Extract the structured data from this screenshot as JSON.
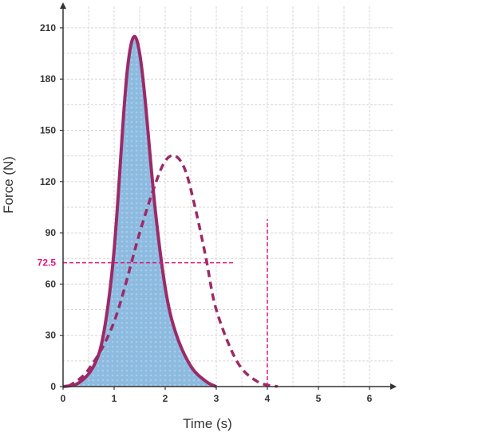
{
  "chart_data": {
    "type": "line",
    "xlabel": "Time (s)",
    "ylabel": "Force (N)",
    "xlim": [
      0,
      6.5
    ],
    "ylim": [
      0,
      215
    ],
    "x_ticks": [
      "0",
      "1",
      "2",
      "3",
      "4",
      "5",
      "6"
    ],
    "y_ticks": [
      "0",
      "30",
      "60",
      "90",
      "120",
      "150",
      "180",
      "210"
    ],
    "grid": true,
    "series": [
      {
        "style": "solid, shaded area under curve",
        "color": "#9c2a67",
        "fill_color": "#8dbbe0",
        "x": [
          0,
          0.3,
          0.6,
          0.8,
          1.0,
          1.2,
          1.3,
          1.4,
          1.5,
          1.6,
          1.8,
          2.0,
          2.2,
          2.5,
          2.8,
          3.0
        ],
        "y": [
          0,
          2,
          12,
          32,
          80,
          165,
          195,
          205,
          195,
          170,
          105,
          58,
          32,
          12,
          3,
          0
        ]
      },
      {
        "style": "dashed",
        "color": "#9c2a67",
        "x": [
          0.1,
          0.5,
          1.0,
          1.5,
          1.8,
          2.0,
          2.2,
          2.4,
          2.6,
          2.8,
          3.0,
          3.4,
          3.8,
          4.2
        ],
        "y": [
          0,
          10,
          38,
          90,
          118,
          132,
          135,
          126,
          103,
          75,
          45,
          15,
          3,
          0
        ]
      }
    ],
    "annotations": [
      {
        "type": "horizontal_line",
        "y": 72.5,
        "x_from": 0,
        "x_to": 3.35,
        "label": "72.5",
        "color": "#e0187a"
      },
      {
        "type": "vertical_line",
        "x": 4,
        "y_from": 0,
        "y_to": 98,
        "label": "4",
        "color": "#e0187a"
      }
    ]
  }
}
